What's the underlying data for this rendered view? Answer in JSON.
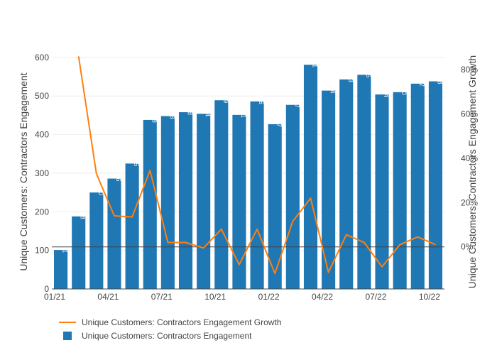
{
  "chart_data": {
    "type": "bar+line",
    "x_tick_labels": [
      "01/21",
      "04/21",
      "07/21",
      "10/21",
      "01/22",
      "04/22",
      "07/22",
      "10/22"
    ],
    "bars": {
      "name": "Unique Customers: Contractors Engagement",
      "color": "#1f77b4",
      "values": [
        101,
        188,
        250,
        286,
        325,
        438,
        448,
        458,
        454,
        489,
        451,
        486,
        427,
        477,
        581,
        514,
        543,
        555,
        504,
        510,
        532,
        538
      ]
    },
    "line": {
      "name": "Unique Customers: Contractors Engagement Growth",
      "color": "#ff7f0e",
      "values": [
        null,
        86,
        33,
        14,
        13.5,
        34.5,
        2,
        2,
        -0.5,
        8,
        -8,
        8,
        -12,
        11.5,
        22,
        -11.5,
        5.5,
        2,
        -9,
        1,
        4.5,
        1
      ]
    },
    "y_left": {
      "title": "Unique Customers: Contractors Engagement",
      "range": [
        0,
        620
      ],
      "ticks": [
        0,
        100,
        200,
        300,
        400,
        500,
        600
      ],
      "tick_labels": [
        "0",
        "100",
        "200",
        "300",
        "400",
        "500",
        "600"
      ]
    },
    "y_right": {
      "title": "Unique Customers: Contractors Engagement Growth",
      "range": [
        -19,
        89
      ],
      "ticks": [
        0,
        20,
        40,
        60,
        80
      ],
      "tick_labels": [
        "0%",
        "20%",
        "40%",
        "60%",
        "80%"
      ]
    },
    "legend": {
      "placement": "bottom-left",
      "items": [
        {
          "label": "Unique Customers: Contractors Engagement Growth",
          "kind": "line",
          "color": "#ff7f0e"
        },
        {
          "label": "Unique Customers: Contractors Engagement",
          "kind": "bar",
          "color": "#1f77b4"
        }
      ]
    }
  }
}
